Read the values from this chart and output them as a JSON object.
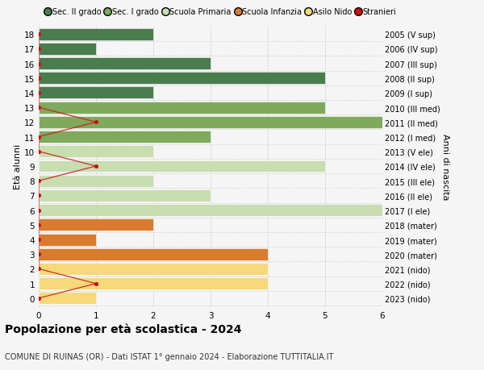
{
  "ages": [
    18,
    17,
    16,
    15,
    14,
    13,
    12,
    11,
    10,
    9,
    8,
    7,
    6,
    5,
    4,
    3,
    2,
    1,
    0
  ],
  "years": [
    "2005 (V sup)",
    "2006 (IV sup)",
    "2007 (III sup)",
    "2008 (II sup)",
    "2009 (I sup)",
    "2010 (III med)",
    "2011 (II med)",
    "2012 (I med)",
    "2013 (V ele)",
    "2014 (IV ele)",
    "2015 (III ele)",
    "2016 (II ele)",
    "2017 (I ele)",
    "2018 (mater)",
    "2019 (mater)",
    "2020 (mater)",
    "2021 (nido)",
    "2022 (nido)",
    "2023 (nido)"
  ],
  "bar_values": [
    2,
    1,
    3,
    5,
    2,
    5,
    6,
    3,
    2,
    5,
    2,
    3,
    6,
    2,
    1,
    4,
    4,
    4,
    1
  ],
  "bar_colors": [
    "#4a7c4e",
    "#4a7c4e",
    "#4a7c4e",
    "#4a7c4e",
    "#4a7c4e",
    "#7faa5e",
    "#7faa5e",
    "#7faa5e",
    "#c8ddb0",
    "#c8ddb0",
    "#c8ddb0",
    "#c8ddb0",
    "#c8ddb0",
    "#d97b2e",
    "#d97b2e",
    "#d97b2e",
    "#f5d97a",
    "#f5d97a",
    "#f5d97a"
  ],
  "stranieri_x": [
    0,
    0,
    0,
    0,
    0,
    0,
    1,
    0,
    0,
    1,
    0,
    0,
    0,
    0,
    0,
    0,
    0,
    1,
    0
  ],
  "title": "Popolazione per età scolastica - 2024",
  "subtitle": "COMUNE DI RUINAS (OR) - Dati ISTAT 1° gennaio 2024 - Elaborazione TUTTITALIA.IT",
  "ylabel_left": "Età alunni",
  "ylabel_right": "Anni di nascita",
  "color_sec2": "#4a7c4e",
  "color_sec1": "#7faa5e",
  "color_primaria": "#c8ddb0",
  "color_infanzia": "#d97b2e",
  "color_nido": "#f5d97a",
  "color_stranieri": "#cc1111",
  "bg_color": "#f5f5f5",
  "grid_color": "#cccccc",
  "bar_height": 0.82
}
